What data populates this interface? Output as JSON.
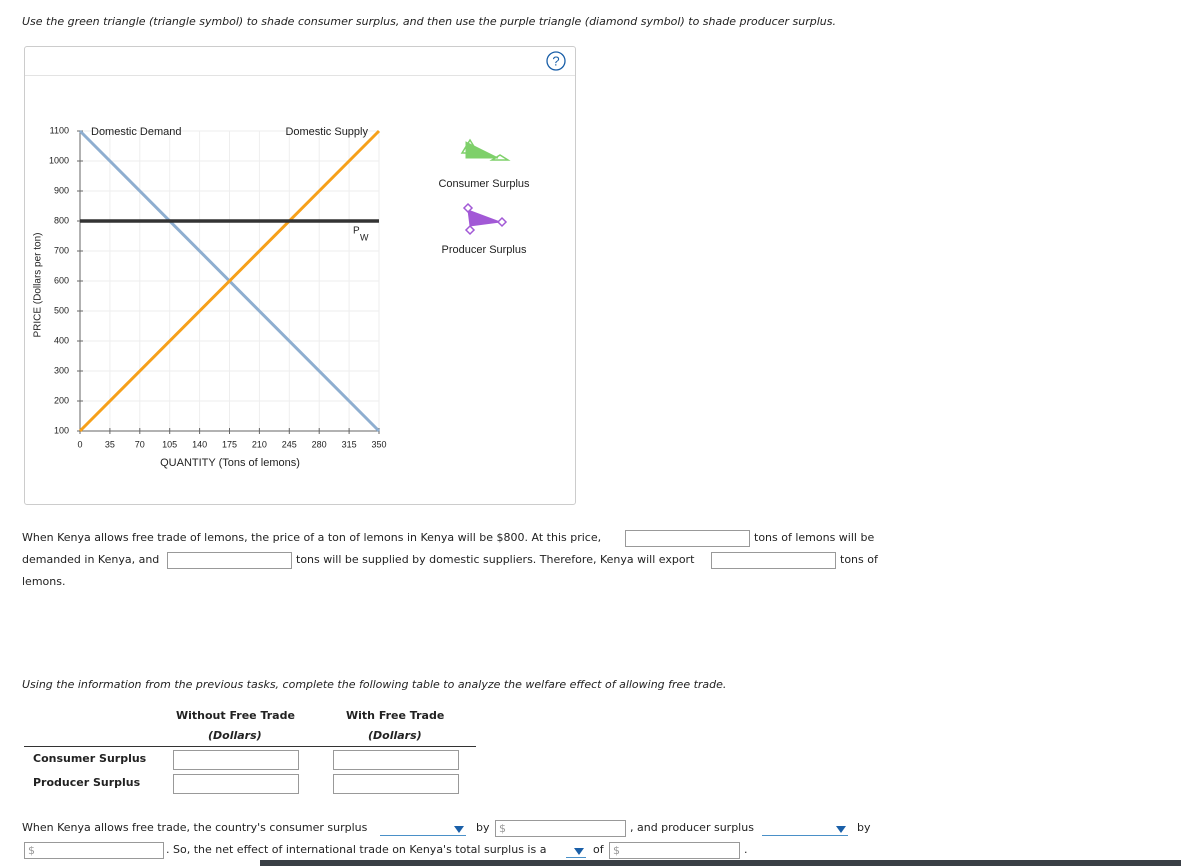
{
  "instruction": "Use the green triangle (triangle symbol) to shade consumer surplus, and then use the purple triangle (diamond symbol) to shade producer surplus.",
  "help_icon": "?",
  "chart_data": {
    "type": "line",
    "xlabel": "QUANTITY (Tons of lemons)",
    "ylabel": "PRICE (Dollars per ton)",
    "xlim": [
      0,
      350
    ],
    "ylim": [
      100,
      1100
    ],
    "xticks": [
      0,
      35,
      70,
      105,
      140,
      175,
      210,
      245,
      280,
      315,
      350
    ],
    "yticks": [
      100,
      200,
      300,
      400,
      500,
      600,
      700,
      800,
      900,
      1000,
      1100
    ],
    "grid": true,
    "series": [
      {
        "name": "Domestic Demand",
        "color": "#8eaed0",
        "x": [
          0,
          350
        ],
        "values": [
          1100,
          100
        ]
      },
      {
        "name": "Domestic Supply",
        "color": "#f6a01a",
        "x": [
          0,
          350
        ],
        "values": [
          100,
          1100
        ]
      },
      {
        "name": "P",
        "name_subscript": "W",
        "color": "#333333",
        "x": [
          0,
          350
        ],
        "values": [
          800,
          800
        ]
      }
    ],
    "tools": [
      "Consumer Surplus",
      "Producer Surplus"
    ]
  },
  "question1": {
    "line1": [
      "When Kenya allows free trade of lemons, the price of a ton of lemons in Kenya will be $800. At this price,",
      "tons of lemons will be"
    ],
    "line2": [
      "demanded in Kenya, and",
      "tons will be supplied by domestic suppliers. Therefore, Kenya will export",
      "tons of"
    ],
    "line3": "lemons."
  },
  "question2": {
    "prompt": "Using the information from the previous tasks, complete the following table to analyze the welfare effect of allowing free trade.",
    "table": {
      "columns": [
        [
          "Without Free Trade",
          "(Dollars)"
        ],
        [
          "With Free Trade",
          "(Dollars)"
        ]
      ],
      "rows": [
        "Consumer Surplus",
        "Producer Surplus"
      ]
    }
  },
  "question3": {
    "currency": "$",
    "line1": [
      "When Kenya allows free trade, the country's consumer surplus",
      "by",
      ", and producer surplus",
      "by"
    ],
    "line2": [
      ". So, the net effect of international trade on Kenya's total surplus is a",
      "of",
      "."
    ]
  }
}
